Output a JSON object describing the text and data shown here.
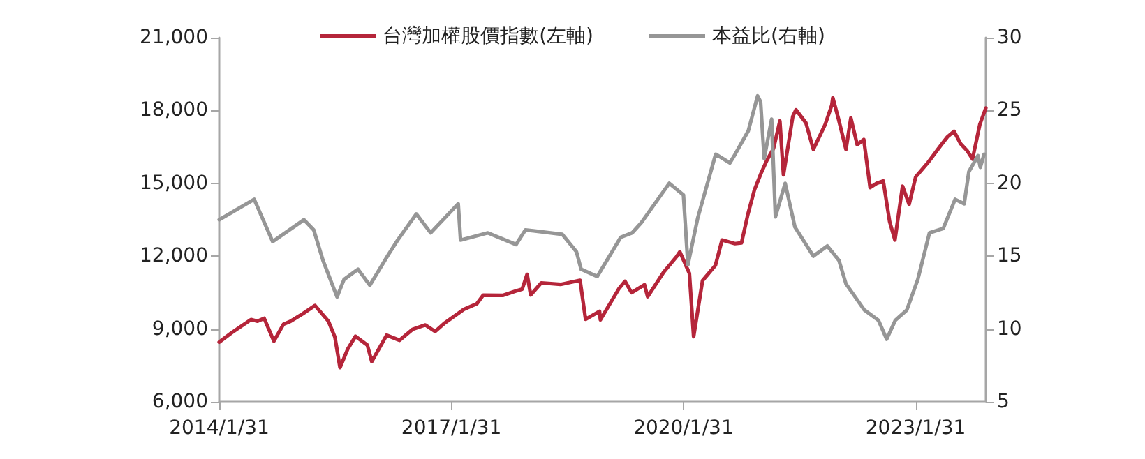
{
  "chart_data": {
    "type": "line",
    "xlim": [
      "2014-01-31",
      "2023-12-28"
    ],
    "xticks": [
      {
        "value": "2014-01-31",
        "label": "2014/1/31"
      },
      {
        "value": "2017-01-31",
        "label": "2017/1/31"
      },
      {
        "value": "2020-01-31",
        "label": "2020/1/31"
      },
      {
        "value": "2023-01-31",
        "label": "2023/1/31"
      }
    ],
    "ylim": [
      6000,
      21000
    ],
    "yticks": [
      {
        "value": 6000,
        "label": "6,000"
      },
      {
        "value": 9000,
        "label": "9,000"
      },
      {
        "value": 12000,
        "label": "12,000"
      },
      {
        "value": 15000,
        "label": "15,000"
      },
      {
        "value": 18000,
        "label": "18,000"
      },
      {
        "value": 21000,
        "label": "21,000"
      }
    ],
    "y2lim": [
      5,
      30
    ],
    "y2ticks": [
      5,
      10,
      15,
      20,
      25,
      30
    ],
    "legend": "top",
    "grid": false,
    "marker": "none",
    "line_style": "solid",
    "series": [
      {
        "name": "台灣加權股價指數(左軸)",
        "color": "#b5253a",
        "x": [
          "2014-01-31",
          "2014-03-31",
          "2014-06-30",
          "2014-07-31",
          "2014-08-31",
          "2014-10-16",
          "2014-11-30",
          "2014-12-31",
          "2015-02-28",
          "2015-04-28",
          "2015-06-30",
          "2015-07-31",
          "2015-08-24",
          "2015-09-30",
          "2015-11-05",
          "2015-12-31",
          "2016-01-21",
          "2016-03-31",
          "2016-05-31",
          "2016-07-31",
          "2016-09-30",
          "2016-11-15",
          "2016-12-31",
          "2017-03-31",
          "2017-05-31",
          "2017-06-30",
          "2017-09-30",
          "2017-11-30",
          "2017-12-31",
          "2018-01-23",
          "2018-02-09",
          "2018-03-31",
          "2018-06-30",
          "2018-09-30",
          "2018-10-26",
          "2018-12-31",
          "2019-01-04",
          "2019-03-31",
          "2019-04-30",
          "2019-05-31",
          "2019-07-31",
          "2019-08-15",
          "2019-10-31",
          "2019-12-31",
          "2020-01-14",
          "2020-02-28",
          "2020-03-19",
          "2020-04-30",
          "2020-06-30",
          "2020-07-31",
          "2020-09-30",
          "2020-10-31",
          "2020-11-30",
          "2020-12-31",
          "2021-01-31",
          "2021-02-28",
          "2021-03-31",
          "2021-04-30",
          "2021-05-17",
          "2021-06-30",
          "2021-07-15",
          "2021-08-31",
          "2021-10-05",
          "2021-11-30",
          "2021-12-31",
          "2022-01-05",
          "2022-01-31",
          "2022-03-08",
          "2022-03-31",
          "2022-04-30",
          "2022-05-31",
          "2022-06-30",
          "2022-07-31",
          "2022-08-31",
          "2022-09-30",
          "2022-10-25",
          "2022-11-30",
          "2022-12-31",
          "2023-01-31",
          "2023-03-31",
          "2023-05-31",
          "2023-06-30",
          "2023-07-31",
          "2023-08-31",
          "2023-09-30",
          "2023-10-26",
          "2023-11-30",
          "2023-12-28"
        ],
        "values": [
          8460,
          8850,
          9390,
          9320,
          9440,
          8500,
          9190,
          9307,
          9620,
          9970,
          9323,
          8665,
          7410,
          8181,
          8700,
          8338,
          7660,
          8744,
          8535,
          8984,
          9166,
          8900,
          9254,
          9812,
          10040,
          10395,
          10384,
          10560,
          10643,
          11250,
          10400,
          10900,
          10837,
          11006,
          9400,
          9727,
          9380,
          10641,
          10967,
          10498,
          10823,
          10330,
          11358,
          11997,
          12180,
          11292,
          8681,
          10992,
          11621,
          12664,
          12516,
          12546,
          13722,
          14733,
          15410,
          15953,
          16431,
          17567,
          15350,
          17755,
          18030,
          17490,
          16400,
          17428,
          18219,
          18526,
          17674,
          16400,
          17693,
          16593,
          16807,
          14826,
          15000,
          15095,
          13425,
          12666,
          14880,
          14138,
          15265,
          15868,
          16579,
          16916,
          17145,
          16634,
          16353,
          16001,
          17433,
          18100
        ]
      },
      {
        "name": "本益比(右軸)",
        "color": "#969696",
        "axis": "y2",
        "x": [
          "2014-01-31",
          "2014-07-15",
          "2014-10-10",
          "2015-03-07",
          "2015-04-22",
          "2015-06-05",
          "2015-08-10",
          "2015-09-12",
          "2015-11-17",
          "2016-01-12",
          "2016-04-08",
          "2016-05-22",
          "2016-08-18",
          "2016-10-25",
          "2017-03-04",
          "2017-03-15",
          "2017-07-22",
          "2017-12-02",
          "2018-01-15",
          "2018-07-08",
          "2018-09-13",
          "2018-10-05",
          "2018-12-20",
          "2019-04-10",
          "2019-06-03",
          "2019-07-16",
          "2019-11-25",
          "2020-01-31",
          "2020-02-21",
          "2020-04-07",
          "2020-07-01",
          "2020-09-06",
          "2020-10-01",
          "2020-12-02",
          "2021-01-15",
          "2021-01-29",
          "2021-02-15",
          "2021-03-22",
          "2021-04-09",
          "2021-05-25",
          "2021-07-10",
          "2021-10-05",
          "2021-12-10",
          "2022-02-03",
          "2022-03-08",
          "2022-06-03",
          "2022-08-08",
          "2022-09-16",
          "2022-10-27",
          "2022-12-20",
          "2023-02-10",
          "2023-04-06",
          "2023-06-10",
          "2023-08-05",
          "2023-09-17",
          "2023-10-09",
          "2023-11-21",
          "2023-12-02",
          "2023-12-20"
        ],
        "values": [
          17.5,
          18.9,
          16.0,
          17.5,
          16.8,
          14.7,
          12.2,
          13.4,
          14.1,
          13.0,
          15.1,
          16.1,
          17.9,
          16.6,
          18.6,
          16.1,
          16.6,
          15.8,
          16.8,
          16.5,
          15.3,
          14.1,
          13.6,
          16.3,
          16.6,
          17.3,
          20.0,
          19.2,
          14.4,
          17.6,
          22.0,
          21.4,
          22.0,
          23.6,
          26.0,
          25.6,
          21.7,
          24.4,
          17.7,
          20.0,
          17.0,
          15.0,
          15.7,
          14.7,
          13.1,
          11.3,
          10.6,
          9.3,
          10.6,
          11.3,
          13.4,
          16.6,
          16.9,
          18.9,
          18.6,
          20.8,
          21.9,
          21.1,
          22.0
        ]
      }
    ]
  }
}
